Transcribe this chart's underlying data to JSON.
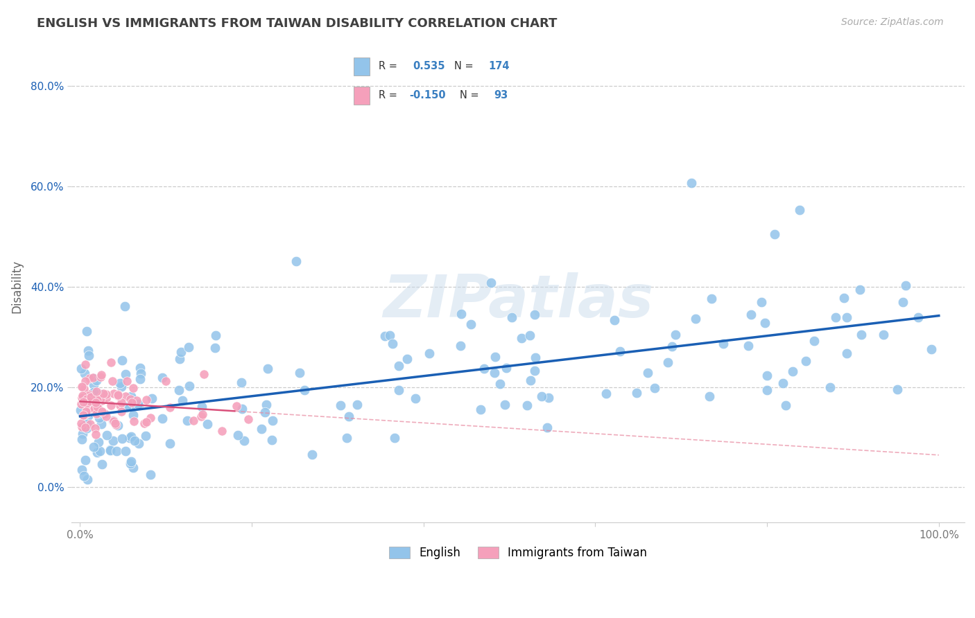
{
  "title": "ENGLISH VS IMMIGRANTS FROM TAIWAN DISABILITY CORRELATION CHART",
  "source": "Source: ZipAtlas.com",
  "ylabel": "Disability",
  "xlim": [
    -0.01,
    1.03
  ],
  "ylim": [
    -0.07,
    0.87
  ],
  "xticks": [
    0.0,
    0.2,
    0.4,
    0.6,
    0.8,
    1.0
  ],
  "yticks": [
    0.0,
    0.2,
    0.4,
    0.6,
    0.8
  ],
  "ytick_labels": [
    "0.0%",
    "20.0%",
    "40.0%",
    "60.0%",
    "80.0%"
  ],
  "xtick_labels": [
    "0.0%",
    "",
    "",
    "",
    "",
    "100.0%"
  ],
  "english_R": 0.535,
  "english_N": 174,
  "taiwan_R": -0.15,
  "taiwan_N": 93,
  "english_color": "#93c4ea",
  "taiwan_color": "#f5a0bb",
  "english_line_color": "#1a5fb4",
  "taiwan_line_color": "#d94f7a",
  "taiwan_line_color_dashed": "#e8889f",
  "legend_label_english": "English",
  "legend_label_taiwan": "Immigrants from Taiwan",
  "watermark": "ZIPatlas",
  "background_color": "#ffffff",
  "grid_color": "#cccccc",
  "title_color": "#404040",
  "legend_number_color": "#3a7fc1",
  "legend_text_color": "#333333"
}
